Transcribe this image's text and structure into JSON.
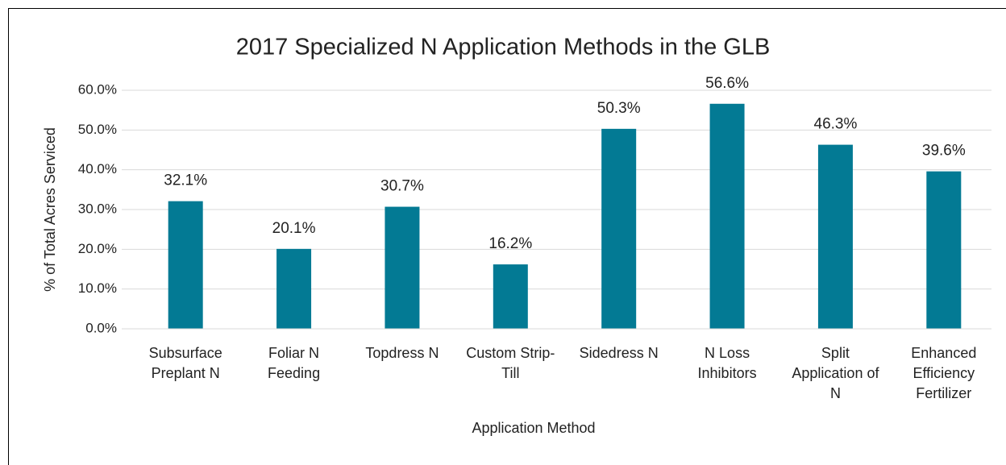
{
  "chart_data": {
    "type": "bar",
    "title": "2017 Specialized N Application Methods in the GLB",
    "x_label": "Application Method",
    "y_label": "% of Total Acres Serviced",
    "categories": [
      "Subsurface Preplant N",
      "Foliar N Feeding",
      "Topdress N",
      "Custom Strip-Till",
      "Sidedress N",
      "N Loss Inhibitors",
      "Split Application of N",
      "Enhanced Efficiency Fertilizer"
    ],
    "values": [
      32.1,
      20.1,
      30.7,
      16.2,
      50.3,
      56.6,
      46.3,
      39.6
    ],
    "value_labels": [
      "32.1%",
      "20.1%",
      "30.7%",
      "16.2%",
      "50.3%",
      "56.6%",
      "46.3%",
      "39.6%"
    ],
    "color": "#037a94",
    "ylim": [
      0,
      60
    ],
    "yticks": [
      {
        "value": 0,
        "label": "0.0%"
      },
      {
        "value": 10,
        "label": "10.0%"
      },
      {
        "value": 20,
        "label": "20.0%"
      },
      {
        "value": 30,
        "label": "30.0%"
      },
      {
        "value": 40,
        "label": "40.0%"
      },
      {
        "value": 50,
        "label": "50.0%"
      },
      {
        "value": 60,
        "label": "60.0%"
      }
    ],
    "grid": true
  }
}
